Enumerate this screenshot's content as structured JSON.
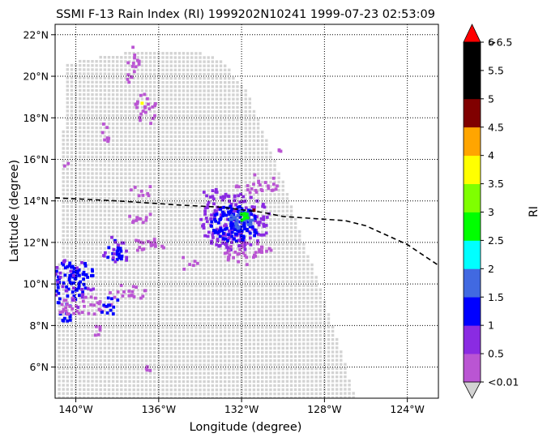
{
  "chart_data": {
    "type": "heatmap",
    "title": "SSMI F-13 Rain Index (RI) 1999202N10241 1999-07-23 02:53:09",
    "xlabel": "Longitude (degree)",
    "ylabel": "Latitude (degree)",
    "xlim": [
      -141.0,
      -122.5
    ],
    "ylim": [
      4.5,
      22.5
    ],
    "xticks": [
      {
        "value": -140,
        "label": "140°W"
      },
      {
        "value": -136,
        "label": "136°W"
      },
      {
        "value": -132,
        "label": "132°W"
      },
      {
        "value": -128,
        "label": "128°W"
      },
      {
        "value": -124,
        "label": "124°W"
      }
    ],
    "yticks": [
      {
        "value": 6,
        "label": "6°N"
      },
      {
        "value": 8,
        "label": "8°N"
      },
      {
        "value": 10,
        "label": "10°N"
      },
      {
        "value": 12,
        "label": "12°N"
      },
      {
        "value": 14,
        "label": "14°N"
      },
      {
        "value": 16,
        "label": "16°N"
      },
      {
        "value": 18,
        "label": "18°N"
      },
      {
        "value": 20,
        "label": "20°N"
      },
      {
        "value": 22,
        "label": "22°N"
      }
    ],
    "grid": "dotted",
    "swath": {
      "polygon": [
        [
          -140.5,
          20.6
        ],
        [
          -138.5,
          21.0
        ],
        [
          -136.5,
          21.3
        ],
        [
          -134.5,
          21.3
        ],
        [
          -133.0,
          20.8
        ],
        [
          -131.8,
          19.4
        ],
        [
          -130.2,
          15.5
        ],
        [
          -128.8,
          11.5
        ],
        [
          -127.4,
          7.5
        ],
        [
          -126.5,
          4.5
        ],
        [
          -141.0,
          4.5
        ]
      ],
      "color": "#d3d3d3"
    },
    "track": [
      [
        -141,
        14.15
      ],
      [
        -138,
        14.0
      ],
      [
        -135,
        13.8
      ],
      [
        -133,
        13.7
      ],
      [
        -131,
        13.45
      ],
      [
        -130,
        13.25
      ],
      [
        -128.5,
        13.15
      ],
      [
        -127,
        13.05
      ],
      [
        -126,
        12.8
      ],
      [
        -124,
        11.9
      ],
      [
        -122.5,
        10.9
      ]
    ],
    "colorbar": {
      "label": "RI",
      "over_label": ">6.5",
      "under_label": "<0.01",
      "over_color": "#ff0000",
      "under_color": "#d3d3d3",
      "bins": [
        {
          "label": "0.5",
          "color": "#ba55d3"
        },
        {
          "label": "1",
          "color": "#8a2be2"
        },
        {
          "label": "1.5",
          "color": "#0000ff"
        },
        {
          "label": "2",
          "color": "#4169e1"
        },
        {
          "label": "2.5",
          "color": "#00ffff"
        },
        {
          "label": "3",
          "color": "#00ff00"
        },
        {
          "label": "3.5",
          "color": "#7fff00"
        },
        {
          "label": "4",
          "color": "#ffff00"
        },
        {
          "label": "4.5",
          "color": "#ffa500"
        },
        {
          "label": "5",
          "color": "#800000"
        },
        {
          "label": "5.5",
          "color": "#000000"
        },
        {
          "label": "6",
          "color": "#000000"
        }
      ]
    },
    "rain_clusters": [
      {
        "lon": -132.3,
        "lat": 13.0,
        "rx": 1.7,
        "ry": 1.4,
        "count": 180,
        "level": 1
      },
      {
        "lon": -132.3,
        "lat": 12.9,
        "rx": 1.2,
        "ry": 0.9,
        "count": 110,
        "level": 2
      },
      {
        "lon": -132.0,
        "lat": 13.1,
        "rx": 0.55,
        "ry": 0.45,
        "count": 30,
        "level": 3
      },
      {
        "lon": -131.9,
        "lat": 13.25,
        "rx": 0.25,
        "ry": 0.2,
        "count": 10,
        "level": 5
      },
      {
        "lon": -131.2,
        "lat": 14.8,
        "rx": 1.1,
        "ry": 0.5,
        "count": 25,
        "level": 0
      },
      {
        "lon": -131.7,
        "lat": 11.5,
        "rx": 1.2,
        "ry": 0.6,
        "count": 35,
        "level": 0
      },
      {
        "lon": -133.5,
        "lat": 14.2,
        "rx": 0.4,
        "ry": 0.6,
        "count": 10,
        "level": 1
      },
      {
        "lon": -140.4,
        "lat": 10.0,
        "rx": 0.9,
        "ry": 1.1,
        "count": 55,
        "level": 2
      },
      {
        "lon": -139.7,
        "lat": 10.5,
        "rx": 0.6,
        "ry": 0.5,
        "count": 25,
        "level": 2
      },
      {
        "lon": -140.5,
        "lat": 8.4,
        "rx": 0.3,
        "ry": 0.3,
        "count": 10,
        "level": 2
      },
      {
        "lon": -139.6,
        "lat": 8.9,
        "rx": 1.4,
        "ry": 0.5,
        "count": 40,
        "level": 0
      },
      {
        "lon": -140.3,
        "lat": 10.0,
        "rx": 1.2,
        "ry": 1.3,
        "count": 30,
        "level": 1
      },
      {
        "lon": -138.1,
        "lat": 11.5,
        "rx": 0.4,
        "ry": 0.6,
        "count": 18,
        "level": 2
      },
      {
        "lon": -138.1,
        "lat": 11.5,
        "rx": 0.7,
        "ry": 0.8,
        "count": 15,
        "level": 1
      },
      {
        "lon": -138.4,
        "lat": 9.0,
        "rx": 0.5,
        "ry": 0.5,
        "count": 12,
        "level": 2
      },
      {
        "lon": -137.5,
        "lat": 9.6,
        "rx": 1.0,
        "ry": 0.4,
        "count": 18,
        "level": 0
      },
      {
        "lon": -136.7,
        "lat": 18.4,
        "rx": 0.6,
        "ry": 0.8,
        "count": 22,
        "level": 0
      },
      {
        "lon": -137.2,
        "lat": 20.8,
        "rx": 0.3,
        "ry": 0.6,
        "count": 12,
        "level": 0
      },
      {
        "lon": -137.4,
        "lat": 19.8,
        "rx": 0.2,
        "ry": 0.3,
        "count": 5,
        "level": 0
      },
      {
        "lon": -136.6,
        "lat": 11.9,
        "rx": 0.6,
        "ry": 0.4,
        "count": 14,
        "level": 0
      },
      {
        "lon": -137.0,
        "lat": 13.2,
        "rx": 1.0,
        "ry": 0.3,
        "count": 12,
        "level": 0
      },
      {
        "lon": -136.8,
        "lat": 14.5,
        "rx": 0.7,
        "ry": 0.3,
        "count": 8,
        "level": 0
      },
      {
        "lon": -138.5,
        "lat": 17.3,
        "rx": 0.3,
        "ry": 0.5,
        "count": 8,
        "level": 0
      },
      {
        "lon": -134.5,
        "lat": 11.0,
        "rx": 0.5,
        "ry": 0.4,
        "count": 6,
        "level": 0
      },
      {
        "lon": -136.0,
        "lat": 11.8,
        "rx": 0.3,
        "ry": 0.2,
        "count": 4,
        "level": 0
      },
      {
        "lon": -139.0,
        "lat": 7.8,
        "rx": 0.3,
        "ry": 0.3,
        "count": 6,
        "level": 0
      },
      {
        "lon": -136.5,
        "lat": 6.0,
        "rx": 0.2,
        "ry": 0.2,
        "count": 4,
        "level": 0
      },
      {
        "lon": -140.5,
        "lat": 15.8,
        "rx": 0.15,
        "ry": 0.15,
        "count": 2,
        "level": 0
      },
      {
        "lon": -130.0,
        "lat": 16.5,
        "rx": 0.3,
        "ry": 0.3,
        "count": 3,
        "level": 0
      }
    ],
    "rain_points": [
      {
        "lon": -136.8,
        "lat": 18.7,
        "level": 7
      },
      {
        "lon": -131.4,
        "lat": 13.55,
        "level": 9
      }
    ]
  }
}
